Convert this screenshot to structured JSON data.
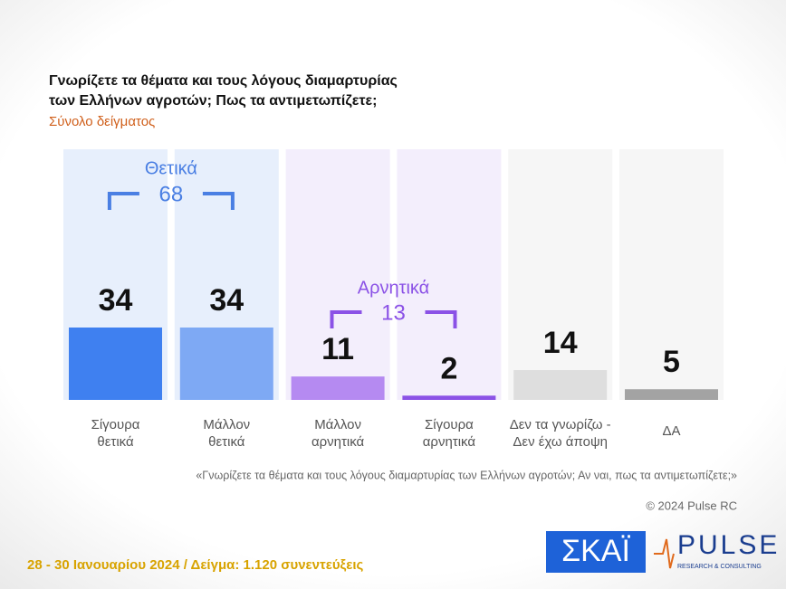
{
  "chart_data": {
    "type": "bar",
    "title": [
      "Γνωρίζετε τα θέματα και τους λόγους διαμαρτυρίας",
      "των Ελλήνων αγροτών; Πως τα αντιμετωπίζετε;"
    ],
    "subtitle": "Σύνολο δείγματος",
    "categories": [
      [
        "Σίγουρα",
        "θετικά"
      ],
      [
        "Μάλλον",
        "θετικά"
      ],
      [
        "Μάλλον",
        "αρνητικά"
      ],
      [
        "Σίγουρα",
        "αρνητικά"
      ],
      [
        "Δεν τα γνωρίζω -",
        "Δεν έχω άποψη"
      ],
      [
        "ΔΑ"
      ]
    ],
    "values": [
      34,
      34,
      11,
      2,
      14,
      5
    ],
    "colors": [
      "#3f80f0",
      "#7ea9f4",
      "#b58af1",
      "#8b52e6",
      "#dedede",
      "#a3a3a3"
    ],
    "groups": [
      {
        "name": "Θετικά",
        "value": 68,
        "color": "#4a7fe3"
      },
      {
        "name": "Αρνητικά",
        "value": 13,
        "color": "#8b52e6"
      }
    ],
    "question": "«Γνωρίζετε τα θέματα και τους λόγους διαμαρτυρίας των Ελλήνων αγροτών; Αν ναι, πως τα αντιμετωπίζετε;»",
    "copyright": "© 2024 Pulse RC",
    "fieldwork": "28 - 30 Ιανουαρίου 2024  /  Δείγμα:  1.120 συνεντεύξεις",
    "logos": {
      "skai": "ΣΚΑΪ",
      "pulse": "PULSE",
      "pulse_tagline": "RESEARCH & CONSULTING"
    }
  }
}
